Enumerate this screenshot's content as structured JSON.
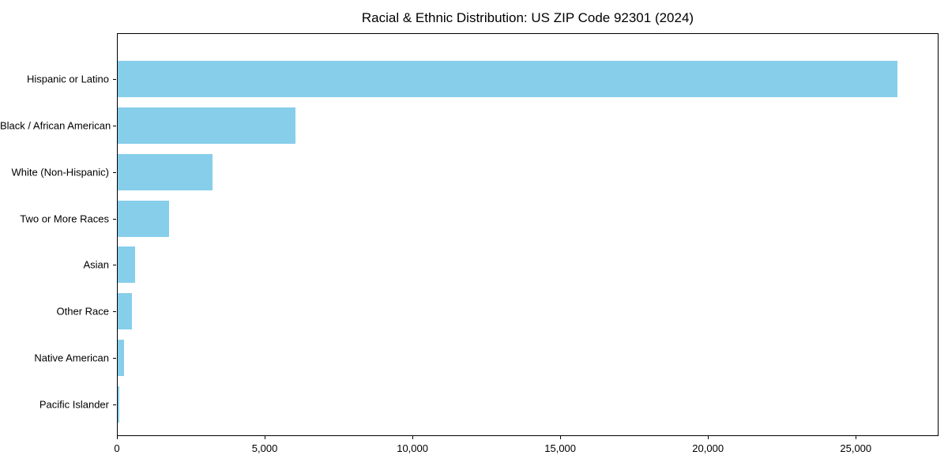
{
  "colors": {
    "background": "#FFFFFF",
    "axis": "#000000",
    "text": "#000000"
  },
  "chart_data": {
    "type": "bar",
    "orientation": "horizontal",
    "title": "Racial & Ethnic Distribution: US ZIP Code 92301 (2024)",
    "xlabel": "",
    "ylabel": "",
    "categories": [
      "Hispanic or Latino",
      "Black / African American",
      "White (Non-Hispanic)",
      "Two or More Races",
      "Asian",
      "Other Race",
      "Native American",
      "Pacific Islander"
    ],
    "values": [
      26440,
      6015,
      3210,
      1740,
      600,
      480,
      215,
      55
    ],
    "bar_color": "#87CEEB",
    "xlim": [
      0,
      27800
    ],
    "xticks": [
      0,
      5000,
      10000,
      15000,
      20000,
      25000
    ],
    "xtick_labels": [
      "0",
      "5,000",
      "10,000",
      "15,000",
      "20,000",
      "25,000"
    ],
    "grid": false,
    "legend": null
  }
}
